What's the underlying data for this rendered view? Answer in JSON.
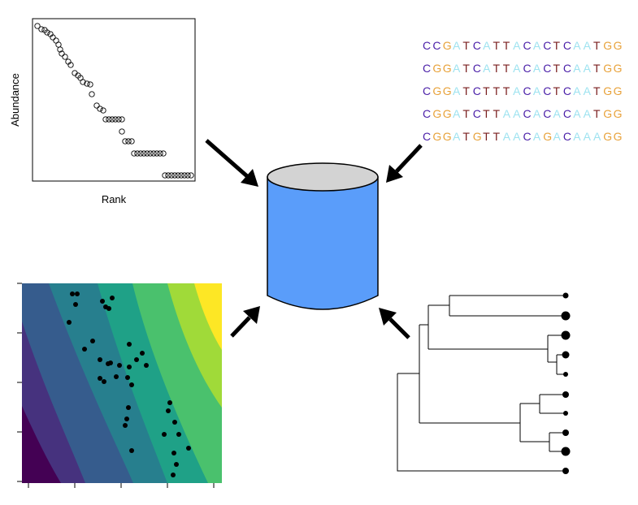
{
  "rank_abundance": {
    "xlabel": "Rank",
    "ylabel": "Abundance"
  },
  "sequences": [
    "CCGATCATTACACTCAATGG",
    "CGGATCATTACACTCAATGG",
    "CGGATCTTTACACTCAATGG",
    "CGGATCTTAACACACAATGG",
    "CGGATGTTAACAGACAAAGG"
  ],
  "base_colors": {
    "C": "#4a1fa8",
    "G": "#e8a23a",
    "A": "#9ee3f0",
    "T": "#7a1f1f"
  },
  "database": {
    "body_color": "#5a9dfa",
    "top_color": "#d3d3d3"
  },
  "heatmap_colors": [
    "#440154",
    "#46327e",
    "#365c8d",
    "#277f8e",
    "#1fa187",
    "#4ac16d",
    "#a0da39",
    "#fde725"
  ],
  "icons": [
    "arrow-icon",
    "database-icon",
    "tree-icon"
  ]
}
